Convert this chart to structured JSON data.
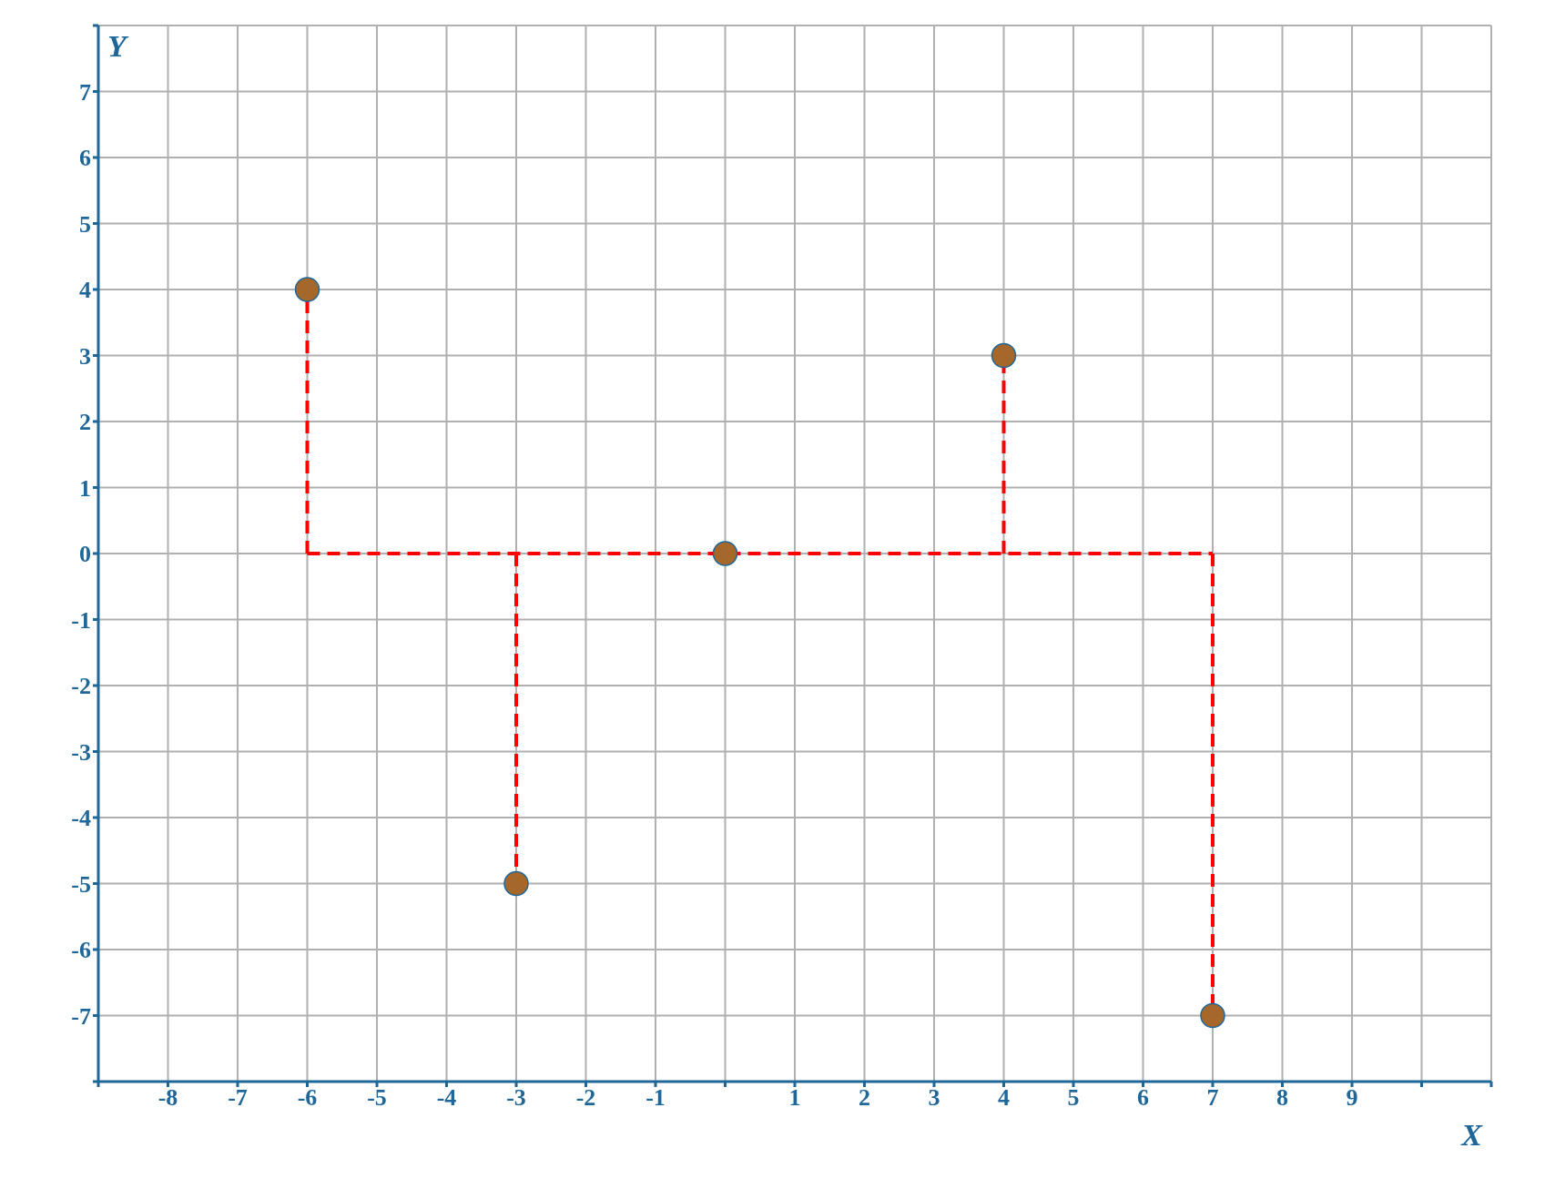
{
  "chart_data": {
    "type": "scatter",
    "xlabel": "X",
    "ylabel": "Y",
    "xlim": [
      -9,
      11
    ],
    "ylim": [
      -8,
      8
    ],
    "xticks": [
      {
        "value": -9,
        "label": null
      },
      -8,
      -7,
      -6,
      -5,
      -4,
      -3,
      -2,
      -1,
      {
        "value": 0,
        "label": null
      },
      1,
      2,
      3,
      4,
      5,
      6,
      7,
      8,
      9,
      {
        "value": 10,
        "label": null
      },
      {
        "value": 11,
        "label": null
      }
    ],
    "yticks": [
      {
        "value": -8,
        "label": null
      },
      -7,
      -6,
      -5,
      -4,
      -3,
      -2,
      -1,
      0,
      1,
      2,
      3,
      4,
      5,
      6,
      7,
      {
        "value": 8,
        "label": null
      }
    ],
    "grid": true,
    "series": [
      {
        "type": "line",
        "color": "#ff0000",
        "line_style": "dashed",
        "marker": "none",
        "x": [
          -6,
          -6
        ],
        "values": [
          0,
          4
        ]
      },
      {
        "type": "line",
        "color": "#ff0000",
        "line_style": "dashed",
        "marker": "none",
        "x": [
          -3,
          -3
        ],
        "values": [
          0,
          -5
        ]
      },
      {
        "type": "line",
        "color": "#ff0000",
        "line_style": "dashed",
        "marker": "none",
        "x": [
          4,
          4
        ],
        "values": [
          0,
          3
        ]
      },
      {
        "type": "line",
        "color": "#ff0000",
        "line_style": "dashed",
        "marker": "none",
        "x": [
          7,
          7
        ],
        "values": [
          0,
          -7
        ]
      },
      {
        "type": "line",
        "color": "#ff0000",
        "line_style": "dashed",
        "marker": "none",
        "x": [
          -6,
          7
        ],
        "values": [
          0,
          0
        ]
      },
      {
        "color": "#a5682a",
        "marker": "circle",
        "x": [
          -6,
          -3,
          0,
          4,
          7
        ],
        "values": [
          4,
          -5,
          0,
          3,
          -7
        ]
      }
    ]
  }
}
